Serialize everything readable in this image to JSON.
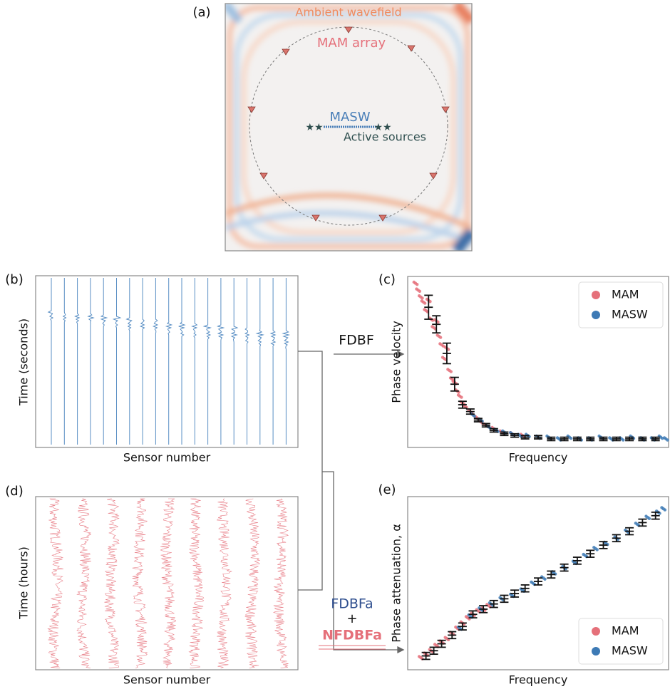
{
  "panel_a": {
    "label": "(a)",
    "ambient": "Ambient wavefield",
    "mam": "MAM array",
    "masw": "MASW",
    "sources": "Active sources"
  },
  "panel_b": {
    "label": "(b)",
    "xlabel": "Sensor number",
    "ylabel": "Time (seconds)"
  },
  "panel_d": {
    "label": "(d)",
    "xlabel": "Sensor number",
    "ylabel": "Time (hours)"
  },
  "flow": {
    "fdbf": "FDBF",
    "fdbfa": "FDBFa",
    "plus": "+",
    "nfdbfa": "NFDBFa"
  },
  "chart_data": [
    {
      "type": "scatter",
      "label": "(c)",
      "xlabel": "Frequency",
      "ylabel": "Phase velocity",
      "xlim": [
        0,
        100
      ],
      "ylim": [
        0,
        100
      ],
      "legend": "upper right",
      "series": [
        {
          "name": "MAM",
          "color": "#e5707a",
          "x": [
            3,
            4,
            5,
            6,
            7,
            8,
            9,
            10,
            11,
            12,
            13,
            14,
            15,
            16,
            17,
            18,
            19,
            20,
            21,
            22,
            24,
            26,
            28,
            30,
            33,
            36,
            40,
            44
          ],
          "values": [
            96,
            92,
            88,
            85,
            80,
            86,
            75,
            70,
            74,
            65,
            60,
            52,
            58,
            45,
            40,
            38,
            33,
            30,
            26,
            24,
            21,
            18,
            15,
            13,
            11,
            9,
            8,
            7
          ]
        },
        {
          "name": "MASW",
          "color": "#3d7ab5",
          "x": [
            25,
            28,
            31,
            34,
            37,
            40,
            43,
            46,
            50,
            54,
            58,
            62,
            66,
            70,
            74,
            78,
            82,
            86,
            90,
            94,
            97,
            99
          ],
          "values": [
            19,
            16,
            12,
            10,
            9,
            8,
            7,
            7,
            6,
            6,
            5,
            6,
            5,
            5,
            6,
            5,
            5,
            6,
            5,
            5,
            6,
            5
          ]
        }
      ],
      "error_bars": {
        "x": [
          8,
          11,
          15,
          18,
          21,
          24,
          27,
          30,
          33,
          37,
          41,
          45,
          50,
          55,
          60,
          65,
          70,
          75,
          80,
          85,
          90,
          95
        ],
        "values": [
          82,
          72,
          55,
          37,
          25,
          21,
          16,
          13,
          10,
          8,
          7,
          6,
          6,
          5,
          5,
          5,
          5,
          5,
          5,
          5,
          5,
          5
        ],
        "errors": [
          7,
          5,
          6,
          4,
          2,
          1.5,
          1,
          1,
          1,
          1,
          1,
          1,
          1,
          1,
          1,
          1,
          1,
          1,
          1,
          1,
          1,
          1
        ]
      }
    },
    {
      "type": "scatter",
      "label": "(e)",
      "xlabel": "Frequency",
      "ylabel": "Phase attenuation, α",
      "xlim": [
        0,
        100
      ],
      "ylim": [
        0,
        100
      ],
      "legend": "lower right",
      "series": [
        {
          "name": "MAM",
          "color": "#e5707a",
          "x": [
            5,
            7,
            9,
            11,
            13,
            15,
            17,
            19,
            21,
            23,
            25,
            27,
            29,
            31
          ],
          "values": [
            7,
            9,
            11,
            14,
            16,
            18,
            21,
            24,
            27,
            30,
            32,
            34,
            35,
            37
          ]
        },
        {
          "name": "MASW",
          "color": "#3d7ab5",
          "x": [
            20,
            24,
            28,
            32,
            36,
            40,
            44,
            48,
            52,
            56,
            60,
            64,
            68,
            72,
            76,
            80,
            84,
            88,
            92,
            96,
            98
          ],
          "values": [
            24,
            31,
            35,
            38,
            41,
            43,
            46,
            50,
            53,
            56,
            59,
            62,
            66,
            70,
            73,
            76,
            80,
            84,
            88,
            91,
            93
          ]
        }
      ],
      "error_bars": {
        "x": [
          7,
          10,
          13,
          17,
          21,
          25,
          29,
          33,
          37,
          41,
          45,
          50,
          55,
          60,
          65,
          70,
          75,
          80,
          85,
          90,
          95
        ],
        "values": [
          8,
          11,
          15,
          20,
          25,
          32,
          35,
          38,
          41,
          44,
          47,
          51,
          55,
          59,
          63,
          67,
          72,
          76,
          80,
          85,
          89
        ],
        "errors": [
          2,
          2,
          2,
          2,
          2,
          2,
          2,
          2,
          2,
          2,
          2,
          2,
          2,
          2,
          2,
          2,
          2,
          2,
          2,
          2,
          2
        ]
      }
    }
  ]
}
